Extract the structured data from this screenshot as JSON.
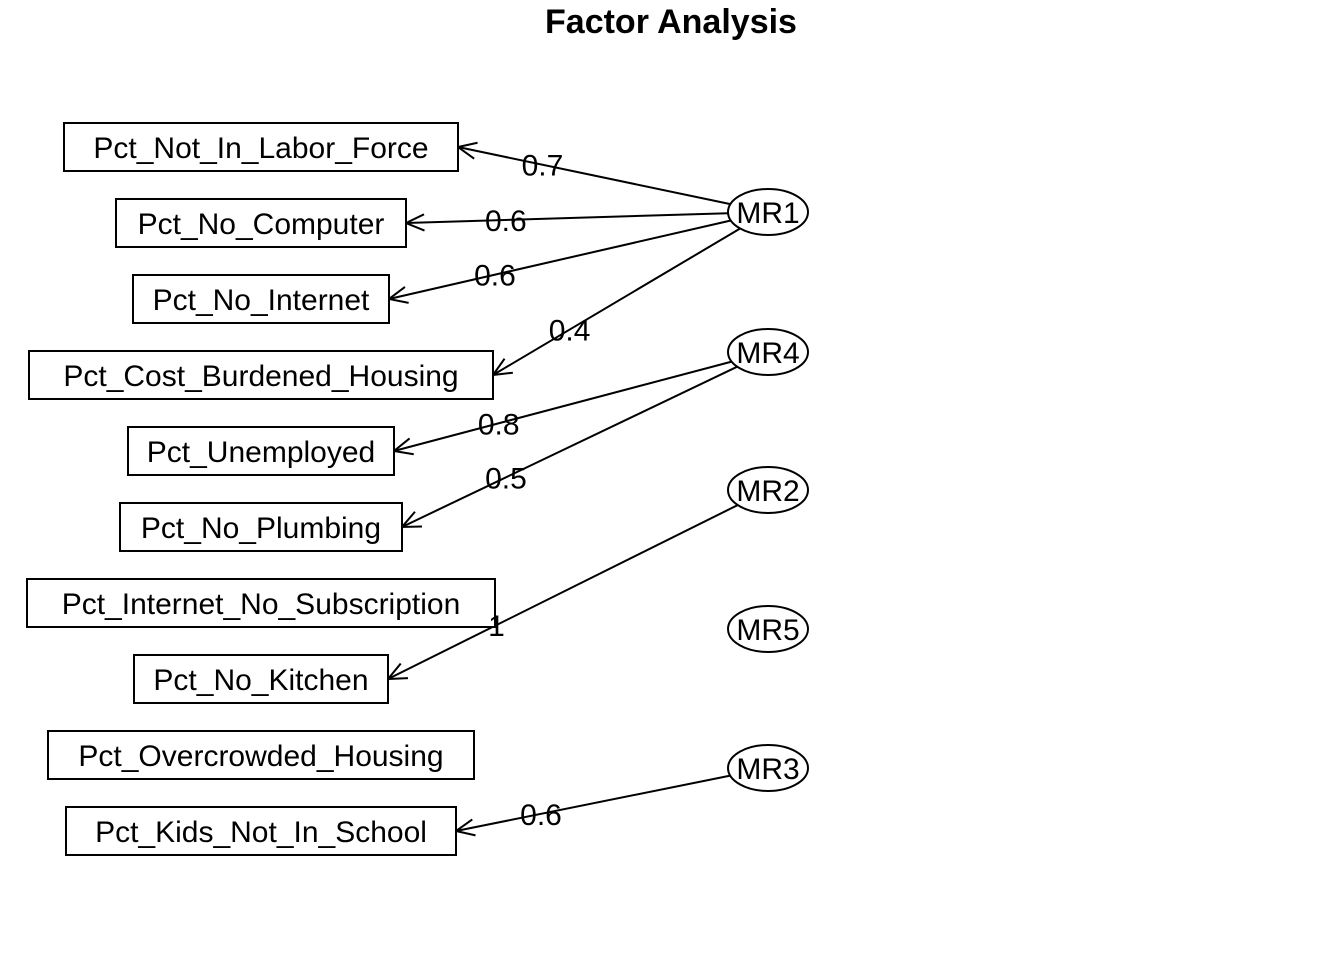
{
  "title": "Factor Analysis",
  "variables": [
    "Pct_Not_In_Labor_Force",
    "Pct_No_Computer",
    "Pct_No_Internet",
    "Pct_Cost_Burdened_Housing",
    "Pct_Unemployed",
    "Pct_No_Plumbing",
    "Pct_Internet_No_Subscription",
    "Pct_No_Kitchen",
    "Pct_Overcrowded_Housing",
    "Pct_Kids_Not_In_School"
  ],
  "factors": [
    "MR1",
    "MR4",
    "MR2",
    "MR5",
    "MR3"
  ],
  "loadings": [
    {
      "factor": "MR1",
      "variable": "Pct_Not_In_Labor_Force",
      "label": "0.7"
    },
    {
      "factor": "MR1",
      "variable": "Pct_No_Computer",
      "label": "0.6"
    },
    {
      "factor": "MR1",
      "variable": "Pct_No_Internet",
      "label": "0.6"
    },
    {
      "factor": "MR1",
      "variable": "Pct_Cost_Burdened_Housing",
      "label": "0.4"
    },
    {
      "factor": "MR4",
      "variable": "Pct_Unemployed",
      "label": "0.8"
    },
    {
      "factor": "MR4",
      "variable": "Pct_No_Plumbing",
      "label": "0.5"
    },
    {
      "factor": "MR2",
      "variable": "Pct_No_Kitchen",
      "label": "1"
    },
    {
      "factor": "MR3",
      "variable": "Pct_Kids_Not_In_School",
      "label": "0.6"
    }
  ]
}
